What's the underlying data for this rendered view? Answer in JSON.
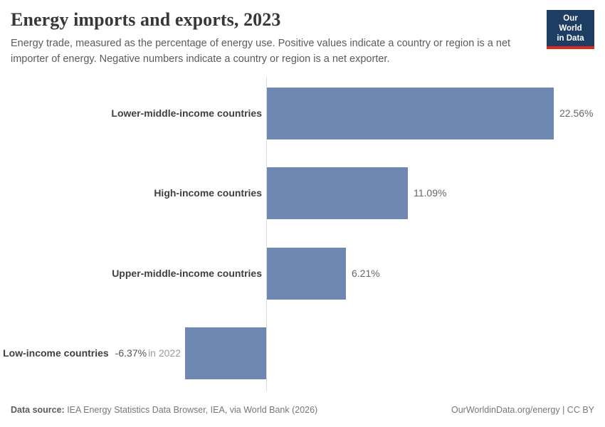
{
  "header": {
    "title": "Energy imports and exports, 2023",
    "subtitle": "Energy trade, measured as the percentage of energy use. Positive values indicate a country or region is a net importer of energy. Negative numbers indicate a country or region is a net exporter.",
    "logo": {
      "line1": "Our World",
      "line2": "in Data"
    }
  },
  "chart_data": {
    "type": "bar",
    "orientation": "horizontal",
    "title": "Energy imports and exports, 2023",
    "unit": "%",
    "categories": [
      "Lower-middle-income countries",
      "High-income countries",
      "Upper-middle-income countries",
      "Low-income countries"
    ],
    "values": [
      22.56,
      11.09,
      6.21,
      -6.37
    ],
    "value_labels": [
      "22.56%",
      "11.09%",
      "6.21%",
      "-6.37%"
    ],
    "notes": [
      "",
      "",
      "",
      "in 2022"
    ],
    "xlim": [
      -8,
      26.6
    ],
    "grid": false,
    "legend": false,
    "bar_color": "#6e88b1"
  },
  "footer": {
    "datasource_label": "Data source:",
    "datasource_text": " IEA Energy Statistics Data Browser, IEA, via World Bank (2026)",
    "credit": "OurWorldinData.org/energy | CC BY"
  },
  "colors": {
    "bar": "#6e88b1",
    "axis": "#dcdcdc",
    "logo_navy": "#1d3d63",
    "logo_red": "#dc2a20"
  }
}
